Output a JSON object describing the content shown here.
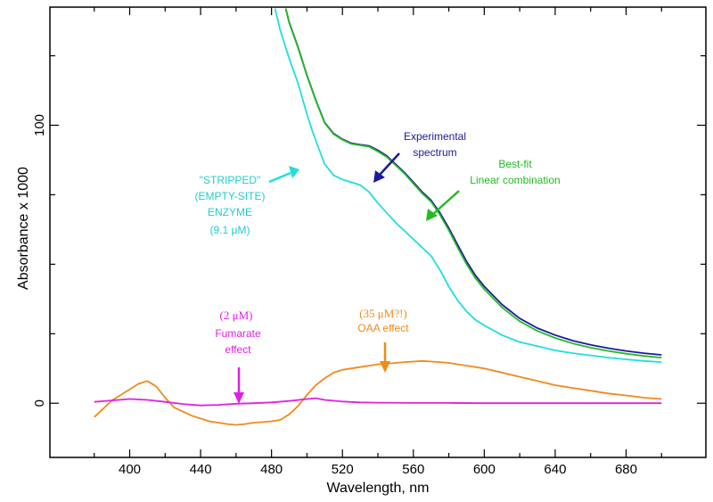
{
  "chart_data": {
    "type": "line",
    "xlabel": "Wavelength, nm",
    "ylabel": "Absorbance x 1000",
    "xlim": [
      355,
      725
    ],
    "ylim": [
      -19.5,
      142.5
    ],
    "x_ticks": [
      400,
      440,
      480,
      520,
      560,
      600,
      640,
      680
    ],
    "y_ticks": [
      0,
      100
    ],
    "grid": false,
    "series": [
      {
        "key": "experimental",
        "color": "#1a1a9a",
        "points": [
          [
            488,
            142
          ],
          [
            490,
            137
          ],
          [
            495,
            128
          ],
          [
            500,
            118
          ],
          [
            505,
            109
          ],
          [
            510,
            101
          ],
          [
            515,
            97
          ],
          [
            520,
            95
          ],
          [
            525,
            93.5
          ],
          [
            530,
            93
          ],
          [
            535,
            92.6
          ],
          [
            540,
            91
          ],
          [
            545,
            89
          ],
          [
            550,
            86
          ],
          [
            555,
            83
          ],
          [
            560,
            79.5
          ],
          [
            565,
            76
          ],
          [
            570,
            73
          ],
          [
            575,
            68.5
          ],
          [
            580,
            63
          ],
          [
            585,
            57
          ],
          [
            590,
            51
          ],
          [
            595,
            46
          ],
          [
            600,
            42
          ],
          [
            610,
            35.5
          ],
          [
            620,
            30.5
          ],
          [
            630,
            27
          ],
          [
            640,
            24.5
          ],
          [
            650,
            22.5
          ],
          [
            660,
            21
          ],
          [
            670,
            19.8
          ],
          [
            680,
            18.8
          ],
          [
            690,
            18
          ],
          [
            700,
            17.4
          ]
        ]
      },
      {
        "key": "best_fit",
        "color": "#22bb22",
        "points": [
          [
            488,
            142
          ],
          [
            490,
            136.8
          ],
          [
            495,
            127.8
          ],
          [
            500,
            117.8
          ],
          [
            505,
            108.8
          ],
          [
            510,
            100.8
          ],
          [
            515,
            96.8
          ],
          [
            520,
            94.8
          ],
          [
            525,
            93.3
          ],
          [
            530,
            92.8
          ],
          [
            535,
            92.3
          ],
          [
            540,
            90.6
          ],
          [
            545,
            88.6
          ],
          [
            550,
            85.6
          ],
          [
            555,
            82.6
          ],
          [
            560,
            79
          ],
          [
            565,
            75.5
          ],
          [
            570,
            72.5
          ],
          [
            575,
            67.8
          ],
          [
            580,
            62.2
          ],
          [
            585,
            56
          ],
          [
            590,
            50
          ],
          [
            595,
            45
          ],
          [
            600,
            41
          ],
          [
            610,
            34.5
          ],
          [
            620,
            29.5
          ],
          [
            630,
            26
          ],
          [
            640,
            23.5
          ],
          [
            650,
            21.5
          ],
          [
            660,
            20
          ],
          [
            670,
            18.8
          ],
          [
            680,
            17.8
          ],
          [
            690,
            17
          ],
          [
            700,
            16.4
          ]
        ]
      },
      {
        "key": "stripped",
        "color": "#22dddd",
        "points": [
          [
            482,
            142
          ],
          [
            485,
            134
          ],
          [
            490,
            124
          ],
          [
            495,
            115
          ],
          [
            500,
            104
          ],
          [
            503,
            98
          ],
          [
            507,
            91
          ],
          [
            510,
            86
          ],
          [
            515,
            82
          ],
          [
            520,
            80.5
          ],
          [
            525,
            79.5
          ],
          [
            530,
            78.5
          ],
          [
            535,
            76
          ],
          [
            540,
            72
          ],
          [
            545,
            68.5
          ],
          [
            550,
            65
          ],
          [
            555,
            62
          ],
          [
            560,
            59
          ],
          [
            565,
            56
          ],
          [
            570,
            53
          ],
          [
            575,
            48
          ],
          [
            580,
            42
          ],
          [
            585,
            37
          ],
          [
            590,
            33
          ],
          [
            595,
            30
          ],
          [
            600,
            28
          ],
          [
            610,
            24.5
          ],
          [
            620,
            22
          ],
          [
            630,
            20.5
          ],
          [
            640,
            19
          ],
          [
            650,
            18
          ],
          [
            660,
            17.2
          ],
          [
            670,
            16.4
          ],
          [
            680,
            15.8
          ],
          [
            690,
            15.2
          ],
          [
            700,
            14.8
          ]
        ]
      },
      {
        "key": "oaa",
        "color": "#f08a1a",
        "points": [
          [
            380,
            -5
          ],
          [
            385,
            -2
          ],
          [
            390,
            1
          ],
          [
            395,
            3
          ],
          [
            400,
            5
          ],
          [
            405,
            7
          ],
          [
            410,
            8
          ],
          [
            415,
            6
          ],
          [
            420,
            2
          ],
          [
            425,
            -1.5
          ],
          [
            430,
            -3
          ],
          [
            435,
            -4.5
          ],
          [
            440,
            -5.5
          ],
          [
            445,
            -6.5
          ],
          [
            450,
            -7
          ],
          [
            455,
            -7.5
          ],
          [
            460,
            -7.8
          ],
          [
            465,
            -7.5
          ],
          [
            470,
            -7
          ],
          [
            475,
            -6.8
          ],
          [
            480,
            -6.5
          ],
          [
            485,
            -6
          ],
          [
            490,
            -4
          ],
          [
            495,
            -1
          ],
          [
            500,
            3
          ],
          [
            505,
            6.5
          ],
          [
            510,
            9
          ],
          [
            515,
            11
          ],
          [
            520,
            12
          ],
          [
            525,
            12.5
          ],
          [
            530,
            13
          ],
          [
            535,
            13.5
          ],
          [
            540,
            14
          ],
          [
            545,
            14.2
          ],
          [
            550,
            14.5
          ],
          [
            555,
            14.8
          ],
          [
            560,
            15
          ],
          [
            565,
            15.2
          ],
          [
            570,
            15
          ],
          [
            575,
            14.8
          ],
          [
            580,
            14.5
          ],
          [
            585,
            14
          ],
          [
            590,
            13.5
          ],
          [
            600,
            12.5
          ],
          [
            610,
            11
          ],
          [
            620,
            9.5
          ],
          [
            630,
            8
          ],
          [
            640,
            6.5
          ],
          [
            650,
            5.5
          ],
          [
            660,
            4.5
          ],
          [
            670,
            3.5
          ],
          [
            680,
            2.8
          ],
          [
            690,
            2
          ],
          [
            700,
            1.5
          ]
        ]
      },
      {
        "key": "fumarate",
        "color": "#e020e0",
        "points": [
          [
            380,
            0.5
          ],
          [
            390,
            1
          ],
          [
            400,
            1.5
          ],
          [
            410,
            1.2
          ],
          [
            420,
            0.5
          ],
          [
            430,
            -0.3
          ],
          [
            440,
            -0.8
          ],
          [
            450,
            -0.6
          ],
          [
            460,
            -0.2
          ],
          [
            470,
            0
          ],
          [
            480,
            0.3
          ],
          [
            490,
            0.8
          ],
          [
            500,
            1.5
          ],
          [
            505,
            1.8
          ],
          [
            510,
            1.2
          ],
          [
            520,
            0.6
          ],
          [
            530,
            0.3
          ],
          [
            540,
            0.2
          ],
          [
            560,
            0.1
          ],
          [
            580,
            0.1
          ],
          [
            600,
            0
          ],
          [
            640,
            0
          ],
          [
            680,
            0
          ],
          [
            700,
            0
          ]
        ]
      }
    ]
  },
  "annotations": {
    "experimental": {
      "line1": "Experimental",
      "line2": "spectrum",
      "color": "#1a1a9a"
    },
    "best_fit": {
      "line1": "Best-fit",
      "line2": "Linear combination",
      "color": "#22bb22"
    },
    "stripped": {
      "line1": "\"STRIPPED\"",
      "line2": "(EMPTY-SITE)",
      "line3": "ENZYME",
      "line4": "(9.1 μM)",
      "color": "#22cccc"
    },
    "fumarate": {
      "line1": "(2 μM)",
      "line2": "Fumarate",
      "line3": "effect",
      "color": "#e020e0"
    },
    "oaa": {
      "line1": "(35 μM?!)",
      "line2": "OAA effect",
      "color": "#f08a1a"
    }
  }
}
